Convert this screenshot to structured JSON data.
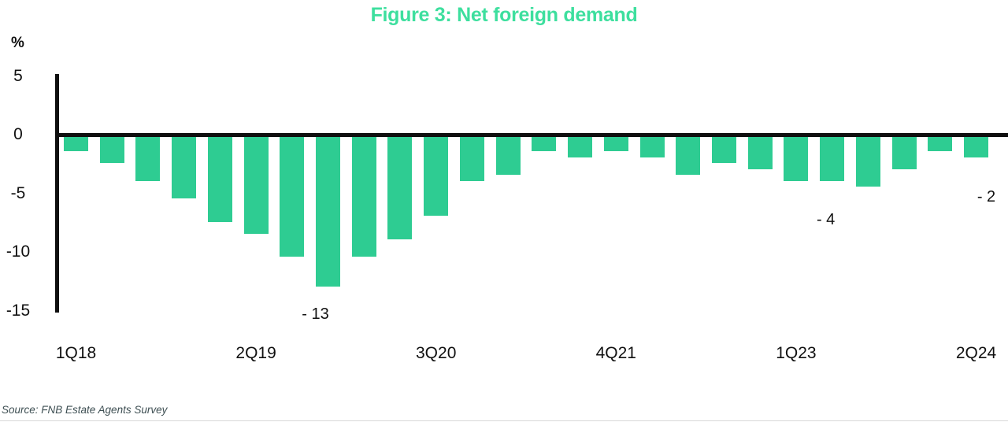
{
  "figure": {
    "title": "Figure 3: Net foreign demand",
    "unit_label": "%",
    "source": "Source: FNB Estate Agents Survey"
  },
  "colors": {
    "bar": "#2ecc92",
    "title_text": "#3ddf9e",
    "axis": "#0f0f0f",
    "tick_text": "#101010",
    "source_text": "#3e4f53",
    "divider": "#d8d8d8"
  },
  "chart_data": {
    "type": "bar",
    "title": "Figure 3: Net foreign demand",
    "xlabel": "",
    "ylabel": "%",
    "ylim": [
      -15,
      5
    ],
    "yticks": [
      5,
      0,
      -5,
      -10,
      -15
    ],
    "grid": false,
    "legend": "none",
    "x": [
      "1Q18",
      "2Q18",
      "3Q18",
      "4Q18",
      "1Q19",
      "2Q19",
      "3Q19",
      "4Q19",
      "1Q20",
      "2Q20",
      "3Q20",
      "4Q20",
      "1Q21",
      "2Q21",
      "3Q21",
      "4Q21",
      "1Q22",
      "2Q22",
      "3Q22",
      "4Q22",
      "1Q23",
      "2Q23",
      "3Q23",
      "4Q23",
      "1Q24",
      "2Q24"
    ],
    "values": [
      -1.5,
      -2.5,
      -4,
      -5.5,
      -7.5,
      -8.5,
      -10.5,
      -13,
      -10.5,
      -9,
      -7,
      -4,
      -3.5,
      -1.5,
      -2,
      -1.5,
      -2,
      -3.5,
      -2.5,
      -3,
      -4,
      -4,
      -4.5,
      -3,
      -1.5,
      -2
    ],
    "xticks": [
      {
        "index": 0,
        "label": "1Q18"
      },
      {
        "index": 5,
        "label": "2Q19"
      },
      {
        "index": 10,
        "label": "3Q20"
      },
      {
        "index": 15,
        "label": "4Q21"
      },
      {
        "index": 20,
        "label": "1Q23"
      },
      {
        "index": 25,
        "label": "2Q24"
      }
    ],
    "annotations": [
      {
        "text": "- 13",
        "index": 7,
        "value": -13
      },
      {
        "text": "- 4",
        "index": 21,
        "value": -4
      },
      {
        "text": "- 2",
        "index": 25,
        "value": -2
      }
    ],
    "source": "Source: FNB Estate Agents Survey"
  }
}
